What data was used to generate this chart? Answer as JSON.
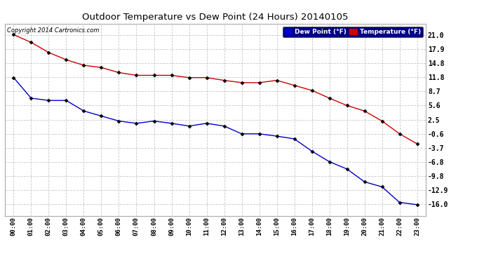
{
  "title": "Outdoor Temperature vs Dew Point (24 Hours) 20140105",
  "copyright_text": "Copyright 2014 Cartronics.com",
  "background_color": "#ffffff",
  "plot_bg_color": "#ffffff",
  "grid_color": "#c8c8c8",
  "x_labels": [
    "00:00",
    "01:00",
    "02:00",
    "03:00",
    "04:00",
    "05:00",
    "06:00",
    "07:00",
    "08:00",
    "09:00",
    "10:00",
    "11:00",
    "12:00",
    "13:00",
    "14:00",
    "15:00",
    "16:00",
    "17:00",
    "18:00",
    "19:00",
    "20:00",
    "21:00",
    "22:00",
    "23:00"
  ],
  "y_ticks": [
    21.0,
    17.9,
    14.8,
    11.8,
    8.7,
    5.6,
    2.5,
    -0.6,
    -3.7,
    -6.8,
    -9.8,
    -12.9,
    -16.0
  ],
  "temperature_data": [
    21.1,
    19.4,
    17.2,
    15.6,
    14.4,
    13.9,
    12.8,
    12.2,
    12.2,
    12.2,
    11.7,
    11.7,
    11.1,
    10.6,
    10.6,
    11.1,
    10.0,
    8.9,
    7.2,
    5.6,
    4.4,
    2.2,
    -0.6,
    -2.8
  ],
  "dewpoint_data": [
    11.7,
    7.2,
    6.7,
    6.7,
    4.4,
    3.3,
    2.2,
    1.7,
    2.2,
    1.7,
    1.1,
    1.7,
    1.1,
    -0.6,
    -0.6,
    -1.1,
    -1.7,
    -4.4,
    -6.7,
    -8.3,
    -11.1,
    -12.2,
    -15.6,
    -16.1
  ],
  "temp_color": "#cc0000",
  "dew_color": "#0000cc",
  "legend_temp_label": "Temperature (°F)",
  "legend_dew_label": "Dew Point (°F)",
  "ylim_min": -18.5,
  "ylim_max": 23.5,
  "marker": "D",
  "marker_size": 2.5,
  "line_width": 1.0
}
